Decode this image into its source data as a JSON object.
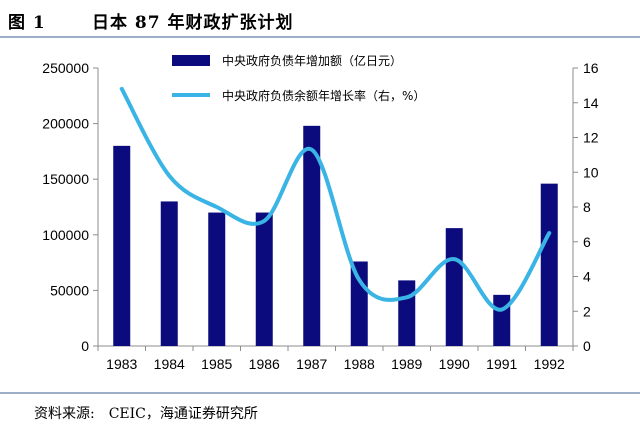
{
  "header": {
    "figure_label": "图 1",
    "title": "日本 87 年财政扩张计划"
  },
  "footer": {
    "source": "资料来源:　CEIC，海通证券研究所"
  },
  "colors": {
    "bar": "#0b0b7d",
    "line": "#39b4e4",
    "axis": "#8c8c8c",
    "rule": "#9bb0c8"
  },
  "chart_data": {
    "type": "bar",
    "categories": [
      "1983",
      "1984",
      "1985",
      "1986",
      "1987",
      "1988",
      "1989",
      "1990",
      "1991",
      "1992"
    ],
    "series": [
      {
        "name": "中央政府负债年增加额（亿日元）",
        "type": "bar",
        "axis": "left",
        "values": [
          180000,
          130000,
          120000,
          120000,
          198000,
          76000,
          59000,
          106000,
          46000,
          146000
        ]
      },
      {
        "name": "中央政府负债余额年增长率（右，%）",
        "type": "line",
        "axis": "right",
        "smooth": true,
        "values": [
          14.8,
          9.8,
          8.0,
          7.2,
          11.3,
          3.8,
          2.8,
          5.0,
          2.1,
          6.5
        ]
      }
    ],
    "left_axis": {
      "range": [
        0,
        250000
      ],
      "ticks": [
        "0",
        "50000",
        "100000",
        "150000",
        "200000",
        "250000"
      ]
    },
    "right_axis": {
      "range": [
        0,
        16
      ],
      "ticks": [
        "0",
        "2",
        "4",
        "6",
        "8",
        "10",
        "12",
        "14",
        "16"
      ]
    },
    "legend_position": "top-center",
    "grid": false
  }
}
